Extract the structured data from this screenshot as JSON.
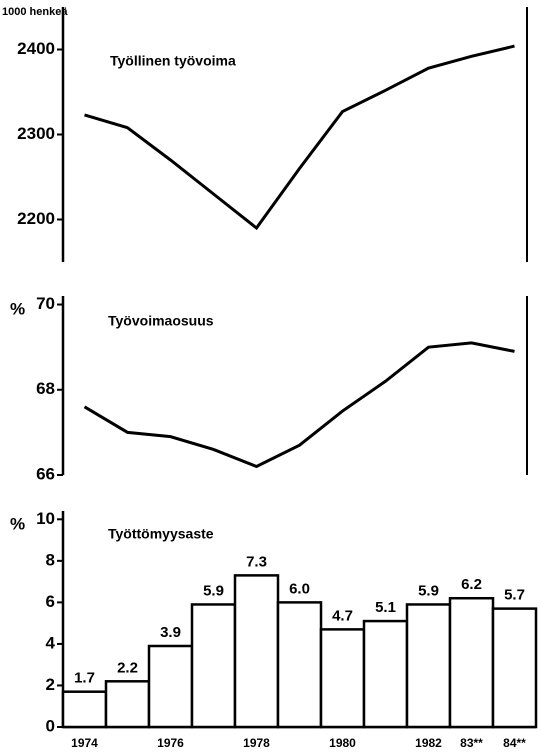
{
  "chart_data": [
    {
      "type": "line",
      "title": "Työllinen työvoima",
      "y_label": "1000 henkeä",
      "values": [
        2323,
        2308,
        2270,
        2230,
        2190,
        2260,
        2327,
        2352,
        2378,
        2392,
        2404
      ],
      "color": "#000000",
      "ylim": [
        2150,
        2450
      ],
      "yticks": [
        2200,
        2300,
        2400
      ]
    },
    {
      "type": "line",
      "title": "Työvoimaosuus",
      "y_label": "%",
      "values": [
        67.6,
        67.0,
        66.9,
        66.6,
        66.2,
        66.7,
        67.5,
        68.2,
        69.0,
        69.1,
        68.9
      ],
      "color": "#000000",
      "ylim": [
        66,
        70.2
      ],
      "yticks": [
        66,
        68,
        70
      ]
    },
    {
      "type": "bar",
      "title": "Työttömyysaste",
      "y_label": "%",
      "categories": [
        "1974",
        null,
        "1976",
        null,
        "1978",
        null,
        "1980",
        null,
        "1982",
        "83**",
        "84**"
      ],
      "values": [
        1.7,
        2.2,
        3.9,
        5.9,
        7.3,
        6.0,
        4.7,
        5.1,
        5.9,
        6.2,
        5.7
      ],
      "value_labels": [
        "1.7",
        "2.2",
        "3.9",
        "5.9",
        "7.3",
        "6.0",
        "4.7",
        "5.1",
        "5.9",
        "6.2",
        "5.7"
      ],
      "color": "#ffffff",
      "ylim": [
        0,
        10.4
      ],
      "yticks": [
        0,
        2,
        4,
        6,
        8,
        10
      ]
    }
  ]
}
